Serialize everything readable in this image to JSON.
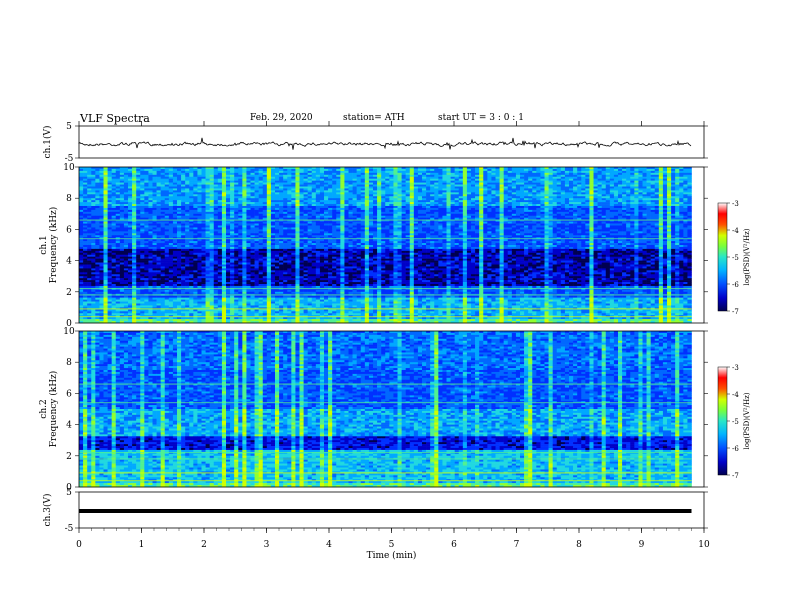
{
  "header": {
    "title": "VLF Spectra",
    "date": "Feb. 29, 2020",
    "station": "station= ATH",
    "start": "start UT = 3 : 0 : 1"
  },
  "colors": {
    "palette": [
      "#000050",
      "#0000c8",
      "#0050ff",
      "#00b4ff",
      "#28e6c8",
      "#78ff3c",
      "#d2ff00",
      "#ff5000",
      "#ff0000",
      "#ffffff"
    ]
  },
  "chart_data": [
    {
      "type": "line",
      "name": "ch1-waveform",
      "ylabel": "ch.1(V)",
      "ylim": [
        -5,
        5
      ],
      "yticks": [
        "5",
        "-5"
      ],
      "x_range": [
        0,
        9.8
      ],
      "series": [
        {
          "values_note_removed": true,
          "mean": 0,
          "amplitude": 0.6
        }
      ],
      "grid": false
    },
    {
      "type": "heatmap",
      "name": "ch1-spectrogram",
      "ylabel": "ch.1 Frequency (kHz)",
      "ylim": [
        0,
        10
      ],
      "yticks": [
        "0",
        "2",
        "4",
        "6",
        "8",
        "10"
      ],
      "x_range": [
        0,
        9.8
      ],
      "bands_khz": [
        [
          0,
          1.6,
          "green-cyan"
        ],
        [
          1.6,
          2.4,
          "blue-green"
        ],
        [
          2.4,
          4.8,
          "dark blue"
        ],
        [
          4.8,
          7.5,
          "blue-cyan"
        ],
        [
          7.5,
          10,
          "cyan-green"
        ]
      ],
      "colorbar": {
        "label": "log(PSD)(V²/Hz)",
        "ticks": [
          "-3",
          "-4",
          "-5",
          "-6",
          "-7"
        ],
        "range": [
          -7,
          -3
        ]
      }
    },
    {
      "type": "heatmap",
      "name": "ch2-spectrogram",
      "ylabel": "ch.2 Frequency (kHz)",
      "ylim": [
        0,
        10
      ],
      "yticks": [
        "0",
        "2",
        "4",
        "6",
        "8",
        "10"
      ],
      "x_range": [
        0,
        9.8
      ],
      "bands_khz": [
        [
          0,
          2.4,
          "green-cyan"
        ],
        [
          2.4,
          3.2,
          "blue"
        ],
        [
          3.2,
          5.0,
          "cyan-green"
        ],
        [
          5.0,
          10,
          "blue-cyan"
        ]
      ],
      "colorbar": {
        "label": "log(PSD)(V²/Hz)",
        "ticks": [
          "-3",
          "-4",
          "-5",
          "-6",
          "-7"
        ],
        "range": [
          -7,
          -3
        ]
      }
    },
    {
      "type": "line",
      "name": "ch3-waveform",
      "ylabel": "ch.3(V)",
      "ylim": [
        -5,
        5
      ],
      "yticks": [
        "5",
        "-5"
      ],
      "x_range": [
        0,
        9.8
      ],
      "series": [
        {
          "constant": 0
        }
      ]
    }
  ],
  "xaxis": {
    "label": "Time (min)",
    "ticks": [
      "0",
      "1",
      "2",
      "3",
      "4",
      "5",
      "6",
      "7",
      "8",
      "9",
      "10"
    ],
    "xlim": [
      0,
      10
    ]
  }
}
